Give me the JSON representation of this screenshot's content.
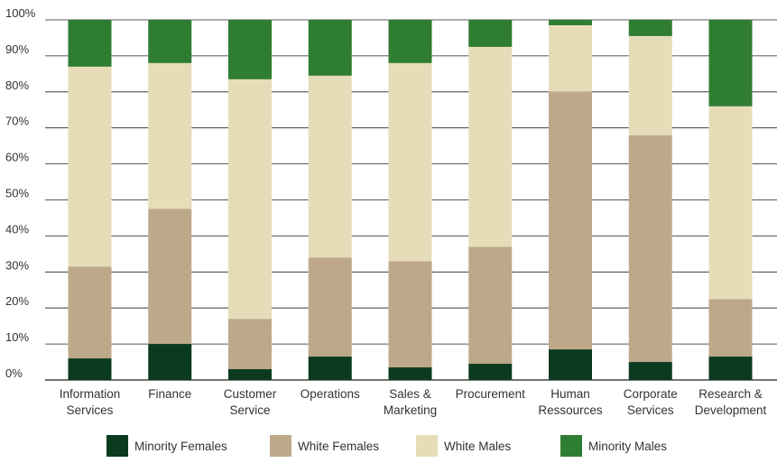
{
  "chart_data": {
    "type": "bar",
    "stacked": true,
    "categories": [
      [
        "Information",
        "Services"
      ],
      [
        "Finance"
      ],
      [
        "Customer",
        "Service"
      ],
      [
        "Operations"
      ],
      [
        "Sales &",
        "Marketing"
      ],
      [
        "Procurement"
      ],
      [
        "Human",
        "Ressources"
      ],
      [
        "Corporate",
        "Services"
      ],
      [
        "Research &",
        "Development"
      ]
    ],
    "series": [
      {
        "name": "Minority Females",
        "color": "#0b3b1f",
        "values": [
          6,
          10,
          3,
          6.5,
          3.5,
          4.5,
          8.5,
          5,
          6.5
        ]
      },
      {
        "name": "White Females",
        "color": "#bda98a",
        "values": [
          25.5,
          37.5,
          14,
          27.5,
          29.5,
          32.5,
          71.5,
          63,
          16
        ]
      },
      {
        "name": "White Males",
        "color": "#e6ddb8",
        "values": [
          55.5,
          40.5,
          66.5,
          50.5,
          55,
          55.5,
          18.5,
          27.5,
          53.5
        ]
      },
      {
        "name": "Minority Males",
        "color": "#2f7d32",
        "values": [
          13,
          12,
          16.5,
          15.5,
          12,
          7.5,
          1.5,
          4.5,
          24
        ]
      }
    ],
    "y_ticks": [
      "0%",
      "10%",
      "20%",
      "30%",
      "40%",
      "50%",
      "60%",
      "70%",
      "80%",
      "90%",
      "100%"
    ],
    "ylim": [
      0,
      100
    ],
    "grid": true,
    "legend_position": "bottom"
  }
}
